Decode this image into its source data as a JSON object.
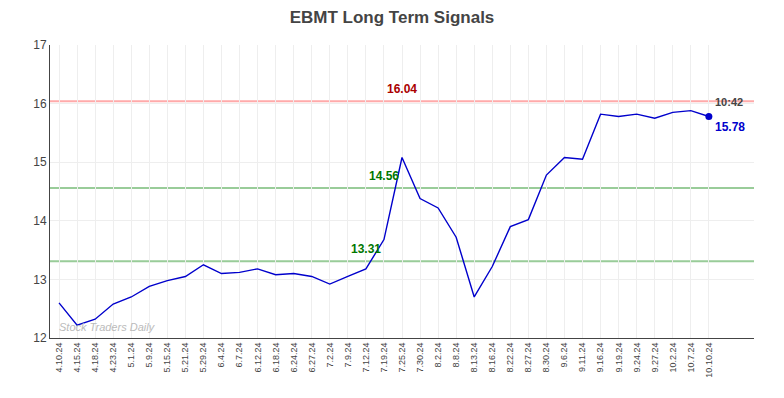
{
  "chart_data": {
    "type": "line",
    "title": "EBMT Long Term Signals",
    "categories": [
      "4.10.24",
      "4.15.24",
      "4.18.24",
      "4.23.24",
      "5.1.24",
      "5.9.24",
      "5.15.24",
      "5.21.24",
      "5.29.24",
      "6.4.24",
      "6.7.24",
      "6.12.24",
      "6.18.24",
      "6.24.24",
      "6.27.24",
      "7.2.24",
      "7.9.24",
      "7.12.24",
      "7.19.24",
      "7.25.24",
      "7.30.24",
      "8.2.24",
      "8.8.24",
      "8.13.24",
      "8.16.24",
      "8.22.24",
      "8.27.24",
      "8.30.24",
      "9.6.24",
      "9.11.24",
      "9.16.24",
      "9.19.24",
      "9.24.24",
      "9.27.24",
      "10.2.24",
      "10.7.24",
      "10.10.24"
    ],
    "values": [
      12.6,
      12.22,
      12.32,
      12.58,
      12.7,
      12.88,
      12.98,
      13.05,
      13.25,
      13.1,
      13.12,
      13.18,
      13.08,
      13.1,
      13.05,
      12.92,
      13.05,
      13.18,
      13.68,
      15.08,
      14.38,
      14.22,
      13.72,
      12.7,
      13.22,
      13.9,
      14.02,
      14.78,
      15.08,
      15.05,
      15.82,
      15.78,
      15.82,
      15.75,
      15.85,
      15.88,
      15.78
    ],
    "color": "#0000cc",
    "ylim": [
      12,
      17
    ],
    "yticks": [
      12,
      13,
      14,
      15,
      16,
      17
    ],
    "grid": true,
    "hlines": [
      {
        "value": 16.04,
        "color": "#ffaaaa"
      },
      {
        "value": 14.56,
        "color": "#99cc99"
      },
      {
        "value": 13.31,
        "color": "#99cc99"
      }
    ],
    "annotations": [
      {
        "text": "16.04",
        "x": "7.25.24",
        "y": 16.04,
        "color": "#aa0000"
      },
      {
        "text": "14.56",
        "x": "7.19.24",
        "y": 14.56,
        "color": "#007700"
      },
      {
        "text": "13.31",
        "x": "7.12.24",
        "y": 13.31,
        "color": "#007700"
      },
      {
        "text": "Stock Traders Daily",
        "color": "#bbbbbb"
      }
    ],
    "last_point": {
      "label": "10:42",
      "value_label": "15.78"
    }
  }
}
